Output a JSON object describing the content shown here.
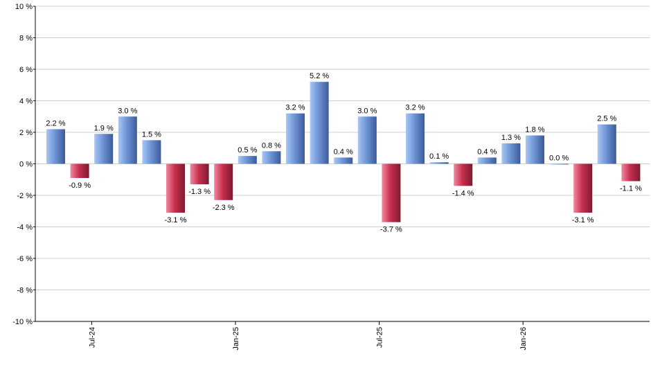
{
  "chart_data": {
    "type": "bar",
    "title": "",
    "xlabel": "",
    "ylabel": "",
    "ylim": [
      -10,
      10
    ],
    "y_ticks": [
      10,
      8,
      6,
      4,
      2,
      0,
      -2,
      -4,
      -6,
      -8,
      -10
    ],
    "y_tick_labels": [
      "10 %",
      "8 %",
      "6 %",
      "4 %",
      "2 %",
      "0 %",
      "-2 %",
      "-4 %",
      "-6 %",
      "-8 %",
      "-10 %"
    ],
    "grid": true,
    "legend": "none",
    "x_tick_labels": [
      {
        "label": "Jul-24",
        "after_bar": 2
      },
      {
        "label": "Jan-25",
        "after_bar": 8
      },
      {
        "label": "Jul-25",
        "after_bar": 14
      },
      {
        "label": "Jan-26",
        "after_bar": 20
      }
    ],
    "values": [
      2.2,
      -0.9,
      1.9,
      3.0,
      1.5,
      -3.1,
      -1.3,
      -2.3,
      0.5,
      0.8,
      3.2,
      5.2,
      0.4,
      3.0,
      -3.7,
      3.2,
      0.1,
      -1.4,
      0.4,
      1.3,
      1.8,
      0.0,
      -3.1,
      2.5,
      -1.1
    ],
    "value_labels": [
      "2.2 %",
      "-0.9 %",
      "1.9 %",
      "3.0 %",
      "1.5 %",
      "-3.1 %",
      "-1.3 %",
      "-2.3 %",
      "0.5 %",
      "0.8 %",
      "3.2 %",
      "5.2 %",
      "0.4 %",
      "3.0 %",
      "-3.7 %",
      "3.2 %",
      "0.1 %",
      "-1.4 %",
      "0.4 %",
      "1.3 %",
      "1.8 %",
      "0.0 %",
      "-3.1 %",
      "2.5 %",
      "-1.1 %"
    ],
    "colors": {
      "positive_light": "#a9c6f5",
      "positive_mid": "#6f95d6",
      "positive_dark": "#3d5a99",
      "negative_light": "#f08aa0",
      "negative_mid": "#c8304f",
      "negative_dark": "#7d1b30"
    }
  }
}
